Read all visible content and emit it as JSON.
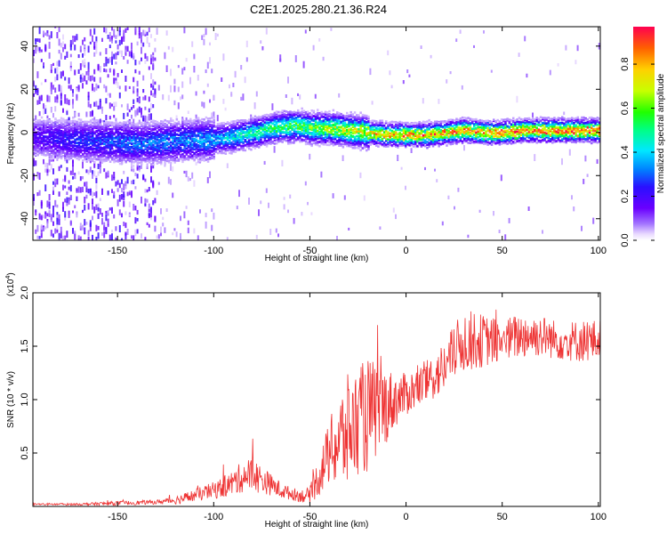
{
  "title": "C2E1.2025.280.21.36.R24",
  "colors": {
    "signal": "#ee3333",
    "axis": "#000000"
  },
  "chart_data": [
    {
      "type": "heatmap",
      "xlabel": "Height of straight line (km)",
      "ylabel": "Frequency (Hz)",
      "xlim": [
        -194,
        101
      ],
      "ylim": [
        -50,
        49
      ],
      "x_ticks": [
        -150,
        -100,
        -50,
        0,
        50,
        100
      ],
      "y_ticks": [
        -40,
        -20,
        0,
        20,
        40
      ],
      "colorbar": {
        "label": "Normalized spectral amplitude",
        "range": [
          0,
          0.97
        ],
        "ticks": [
          "0.0",
          "0.2",
          "0.4",
          "0.6",
          "0.8"
        ],
        "tick_values": [
          0,
          0.2,
          0.4,
          0.6,
          0.8
        ],
        "colormap": "rainbow (white-purple-blue-cyan-green-yellow-red)"
      },
      "ridge_profile": {
        "x": [
          -194,
          -180,
          -160,
          -140,
          -120,
          -100,
          -90,
          -80,
          -70,
          -60,
          -55,
          -50,
          -40,
          -30,
          -20,
          -10,
          0,
          10,
          20,
          30,
          40,
          50,
          60,
          70,
          80,
          90,
          101
        ],
        "y": [
          -2,
          -3,
          -4,
          -5,
          -4,
          -3,
          -2,
          0,
          2,
          3,
          3,
          2,
          2,
          1,
          0,
          -1,
          -1,
          -1,
          0,
          1,
          0,
          0,
          1,
          1,
          1,
          1,
          1
        ],
        "peak_amplitude": [
          0.2,
          0.25,
          0.3,
          0.35,
          0.35,
          0.4,
          0.45,
          0.5,
          0.55,
          0.6,
          0.65,
          0.65,
          0.7,
          0.75,
          0.8,
          0.85,
          0.9,
          0.9,
          0.9,
          0.92,
          0.92,
          0.92,
          0.92,
          0.95,
          0.95,
          0.95,
          0.95
        ]
      }
    },
    {
      "type": "line",
      "xlabel": "Height of straight line (km)",
      "ylabel": "SNR (10 * v/v)",
      "y_multiplier": "(x10^4)",
      "xlim": [
        -194,
        101
      ],
      "ylim": [
        0,
        2.0
      ],
      "x_ticks": [
        -150,
        -100,
        -50,
        0,
        50,
        100
      ],
      "y_ticks": [
        0.5,
        1.0,
        1.5,
        2.0
      ],
      "y_tick_labels": [
        "0.5",
        "1.0",
        "1.5",
        "2.0"
      ],
      "series": [
        {
          "x": [
            -194,
            -170,
            -150,
            -130,
            -120,
            -110,
            -100,
            -95,
            -90,
            -85,
            -80,
            -75,
            -70,
            -65,
            -60,
            -55,
            -50,
            -45,
            -40,
            -35,
            -30,
            -25,
            -20,
            -15,
            -10,
            -5,
            0,
            10,
            20,
            25,
            30,
            40,
            50,
            60,
            70,
            80,
            90,
            101
          ],
          "y": [
            0.02,
            0.02,
            0.03,
            0.04,
            0.06,
            0.1,
            0.15,
            0.18,
            0.22,
            0.28,
            0.3,
            0.25,
            0.2,
            0.15,
            0.12,
            0.1,
            0.1,
            0.3,
            0.5,
            0.6,
            0.7,
            0.8,
            0.85,
            0.9,
            0.95,
            1.0,
            1.05,
            1.15,
            1.3,
            1.45,
            1.55,
            1.55,
            1.55,
            1.6,
            1.6,
            1.55,
            1.55,
            1.55
          ],
          "spread": [
            0.01,
            0.01,
            0.02,
            0.02,
            0.04,
            0.06,
            0.08,
            0.1,
            0.12,
            0.15,
            0.17,
            0.13,
            0.1,
            0.08,
            0.06,
            0.06,
            0.08,
            0.2,
            0.3,
            0.45,
            0.55,
            0.5,
            0.55,
            0.45,
            0.35,
            0.25,
            0.2,
            0.2,
            0.25,
            0.25,
            0.3,
            0.25,
            0.2,
            0.22,
            0.2,
            0.18,
            0.2,
            0.2
          ]
        }
      ]
    }
  ]
}
